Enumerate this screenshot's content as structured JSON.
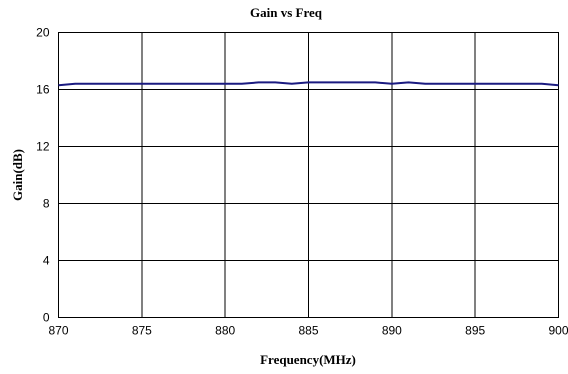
{
  "chart_data": {
    "type": "line",
    "title": "Gain vs Freq",
    "xlabel": "Frequency(MHz)",
    "ylabel": "Gain(dB)",
    "xlim": [
      870,
      900
    ],
    "ylim": [
      0,
      20
    ],
    "xticks": [
      870,
      875,
      880,
      885,
      890,
      895,
      900
    ],
    "yticks": [
      0,
      4,
      8,
      12,
      16,
      20
    ],
    "grid": true,
    "legend": "none",
    "colors": {
      "series": "#1a1a80",
      "grid": "#000000"
    },
    "series": [
      {
        "x": [
          870,
          871,
          872,
          873,
          874,
          875,
          876,
          877,
          878,
          879,
          880,
          881,
          882,
          883,
          884,
          885,
          886,
          887,
          888,
          889,
          890,
          891,
          892,
          893,
          894,
          895,
          896,
          897,
          898,
          899,
          900
        ],
        "values": [
          16.3,
          16.4,
          16.4,
          16.4,
          16.4,
          16.4,
          16.4,
          16.4,
          16.4,
          16.4,
          16.4,
          16.4,
          16.5,
          16.5,
          16.4,
          16.5,
          16.5,
          16.5,
          16.5,
          16.5,
          16.4,
          16.5,
          16.4,
          16.4,
          16.4,
          16.4,
          16.4,
          16.4,
          16.4,
          16.4,
          16.3
        ]
      }
    ]
  }
}
